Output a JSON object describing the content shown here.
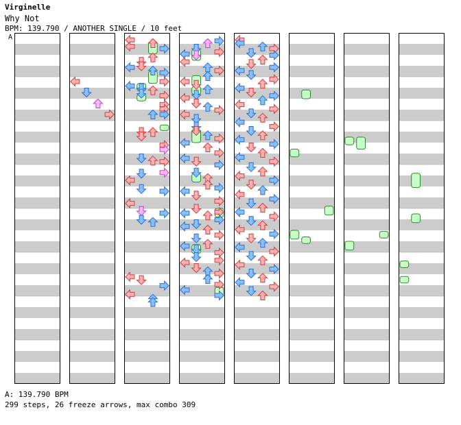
{
  "song": {
    "artist": "Virginelle",
    "title": "Why Not",
    "info": "BPM: 139.790 / ANOTHER SINGLE / 10 feet"
  },
  "marker": "A",
  "footer": {
    "bpm_line": "A: 139.790 BPM",
    "stats_line": "299 steps, 26 freeze arrows, max combo 309"
  },
  "colors": {
    "stripe": "#cccccc",
    "border": "#000000",
    "arrow_red": "#ffb0b0",
    "arrow_red_stroke": "#d23c3c",
    "arrow_blue": "#88c0ff",
    "arrow_blue_stroke": "#2a6fd0",
    "arrow_pink": "#ffb8ff",
    "freeze_fill": "#c8ffc8",
    "freeze_stroke": "#2a8a2a"
  },
  "chart_data": {
    "type": "step-chart",
    "columns": 8,
    "measures_per_column": 8,
    "lanes": [
      "left",
      "down",
      "up",
      "right"
    ],
    "notes": [
      [
        1,
        0,
        4,
        0
      ],
      [
        1,
        1,
        5,
        1
      ],
      [
        1,
        2,
        6,
        2
      ],
      [
        1,
        3,
        7,
        3
      ],
      [
        2,
        0,
        0.2,
        0
      ],
      [
        2,
        0,
        0.8,
        0
      ],
      [
        2,
        2,
        0.5,
        0
      ],
      [
        2,
        3,
        1.0,
        1
      ],
      [
        2,
        2,
        1.8,
        0
      ],
      [
        2,
        0,
        2.7,
        1
      ],
      [
        2,
        1,
        2.2,
        0
      ],
      [
        2,
        1,
        2.6,
        0
      ],
      [
        2,
        2,
        3.0,
        1
      ],
      [
        2,
        3,
        3.2,
        1
      ],
      [
        2,
        3,
        4.0,
        0
      ],
      [
        2,
        0,
        4.4,
        1
      ],
      [
        2,
        1,
        4.6,
        1
      ],
      [
        2,
        2,
        4.8,
        0
      ],
      [
        2,
        1,
        5.1,
        1
      ],
      [
        2,
        3,
        5.3,
        0
      ],
      [
        2,
        3,
        6.1,
        0
      ],
      [
        2,
        3,
        6.5,
        0
      ],
      [
        2,
        2,
        7.0,
        1
      ],
      [
        2,
        3,
        7.0,
        1
      ],
      [
        2,
        1,
        8.6,
        0
      ],
      [
        2,
        2,
        8.6,
        0
      ],
      [
        2,
        1,
        9.0,
        0
      ],
      [
        2,
        3,
        9.8,
        0
      ],
      [
        2,
        3,
        10.2,
        2
      ],
      [
        2,
        1,
        11.0,
        1
      ],
      [
        2,
        2,
        11.2,
        0
      ],
      [
        2,
        3,
        11.3,
        0
      ],
      [
        2,
        3,
        12.3,
        2
      ],
      [
        2,
        1,
        12.4,
        1
      ],
      [
        2,
        0,
        13.0,
        0
      ],
      [
        2,
        1,
        13.8,
        1
      ],
      [
        2,
        3,
        14.0,
        1
      ],
      [
        2,
        0,
        15.1,
        0
      ],
      [
        2,
        1,
        15.8,
        2
      ],
      [
        2,
        3,
        16.0,
        1
      ],
      [
        2,
        1,
        16.6,
        1
      ],
      [
        2,
        2,
        16.8,
        1
      ],
      [
        2,
        0,
        21.8,
        0
      ],
      [
        2,
        1,
        22.1,
        0
      ],
      [
        2,
        3,
        22.6,
        1
      ],
      [
        2,
        0,
        23.4,
        0
      ],
      [
        2,
        2,
        23.8,
        1
      ],
      [
        2,
        2,
        24.1,
        1
      ],
      [
        3,
        2,
        0.5,
        2
      ],
      [
        3,
        3,
        0.3,
        1
      ],
      [
        3,
        1,
        1.0,
        1
      ],
      [
        3,
        3,
        1.3,
        0
      ],
      [
        3,
        0,
        1.5,
        1
      ],
      [
        3,
        1,
        1.6,
        2
      ],
      [
        3,
        0,
        2.2,
        0
      ],
      [
        3,
        2,
        2.7,
        1
      ],
      [
        3,
        3,
        3.0,
        0
      ],
      [
        3,
        2,
        3.5,
        1
      ],
      [
        3,
        0,
        4.0,
        0
      ],
      [
        3,
        1,
        4.3,
        0
      ],
      [
        3,
        2,
        4.7,
        1
      ],
      [
        3,
        1,
        5.2,
        1
      ],
      [
        3,
        0,
        5.5,
        0
      ],
      [
        3,
        1,
        6.0,
        0
      ],
      [
        3,
        2,
        6.3,
        1
      ],
      [
        3,
        3,
        6.6,
        0
      ],
      [
        3,
        0,
        7.0,
        0
      ],
      [
        3,
        1,
        7.4,
        1
      ],
      [
        3,
        1,
        8.1,
        1
      ],
      [
        3,
        1,
        8.5,
        0
      ],
      [
        3,
        2,
        8.9,
        1
      ],
      [
        3,
        3,
        9.2,
        0
      ],
      [
        3,
        0,
        9.6,
        1
      ],
      [
        3,
        2,
        10.0,
        0
      ],
      [
        3,
        3,
        10.5,
        0
      ],
      [
        3,
        0,
        11.0,
        1
      ],
      [
        3,
        1,
        11.3,
        0
      ],
      [
        3,
        3,
        11.6,
        1
      ],
      [
        3,
        1,
        12.3,
        1
      ],
      [
        3,
        2,
        12.8,
        0
      ],
      [
        3,
        2,
        13.4,
        0
      ],
      [
        3,
        3,
        13.7,
        1
      ],
      [
        3,
        0,
        14.0,
        1
      ],
      [
        3,
        1,
        14.4,
        0
      ],
      [
        3,
        3,
        14.9,
        0
      ],
      [
        3,
        1,
        15.6,
        0
      ],
      [
        3,
        3,
        15.9,
        0
      ],
      [
        3,
        0,
        16.0,
        1
      ],
      [
        3,
        2,
        16.2,
        0
      ],
      [
        3,
        3,
        16.6,
        1
      ],
      [
        3,
        1,
        17.0,
        1
      ],
      [
        3,
        0,
        17.2,
        1
      ],
      [
        3,
        2,
        17.5,
        0
      ],
      [
        3,
        3,
        18.0,
        0
      ],
      [
        3,
        1,
        18.3,
        1
      ],
      [
        3,
        2,
        18.8,
        0
      ],
      [
        3,
        0,
        19.0,
        1
      ],
      [
        3,
        1,
        19.3,
        1
      ],
      [
        3,
        3,
        19.6,
        0
      ],
      [
        3,
        1,
        20.0,
        1
      ],
      [
        3,
        3,
        20.3,
        0
      ],
      [
        3,
        0,
        20.5,
        0
      ],
      [
        3,
        1,
        21.0,
        0
      ],
      [
        3,
        2,
        21.3,
        1
      ],
      [
        3,
        3,
        21.5,
        0
      ],
      [
        3,
        2,
        22.0,
        1
      ],
      [
        3,
        3,
        22.5,
        0
      ],
      [
        3,
        0,
        23.0,
        1
      ],
      [
        3,
        3,
        23.5,
        1
      ],
      [
        4,
        0,
        0.2,
        0
      ],
      [
        4,
        0,
        0.5,
        1
      ],
      [
        4,
        2,
        0.8,
        1
      ],
      [
        4,
        3,
        1.0,
        0
      ],
      [
        4,
        1,
        1.4,
        1
      ],
      [
        4,
        3,
        1.6,
        1
      ],
      [
        4,
        2,
        2.0,
        0
      ],
      [
        4,
        1,
        2.4,
        0
      ],
      [
        4,
        3,
        2.7,
        1
      ],
      [
        4,
        0,
        3.0,
        1
      ],
      [
        4,
        1,
        3.4,
        1
      ],
      [
        4,
        3,
        3.8,
        0
      ],
      [
        4,
        2,
        4.2,
        0
      ],
      [
        4,
        0,
        4.6,
        1
      ],
      [
        4,
        1,
        5.0,
        0
      ],
      [
        4,
        3,
        5.3,
        1
      ],
      [
        4,
        2,
        5.7,
        1
      ],
      [
        4,
        0,
        6.1,
        0
      ],
      [
        4,
        3,
        6.5,
        0
      ],
      [
        4,
        1,
        6.9,
        1
      ],
      [
        4,
        2,
        7.3,
        0
      ],
      [
        4,
        0,
        7.7,
        1
      ],
      [
        4,
        3,
        8.1,
        0
      ],
      [
        4,
        1,
        8.5,
        1
      ],
      [
        4,
        2,
        8.9,
        0
      ],
      [
        4,
        0,
        9.3,
        1
      ],
      [
        4,
        3,
        9.7,
        1
      ],
      [
        4,
        1,
        10.0,
        0
      ],
      [
        4,
        2,
        10.5,
        0
      ],
      [
        4,
        0,
        10.9,
        1
      ],
      [
        4,
        3,
        11.3,
        0
      ],
      [
        4,
        1,
        11.8,
        1
      ],
      [
        4,
        2,
        12.2,
        0
      ],
      [
        4,
        0,
        12.6,
        0
      ],
      [
        4,
        3,
        13.0,
        1
      ],
      [
        4,
        1,
        13.4,
        0
      ],
      [
        4,
        2,
        13.9,
        1
      ],
      [
        4,
        0,
        14.3,
        0
      ],
      [
        4,
        3,
        14.7,
        1
      ],
      [
        4,
        1,
        15.1,
        1
      ],
      [
        4,
        2,
        15.5,
        0
      ],
      [
        4,
        0,
        15.9,
        1
      ],
      [
        4,
        3,
        16.3,
        0
      ],
      [
        4,
        1,
        16.7,
        1
      ],
      [
        4,
        2,
        17.1,
        0
      ],
      [
        4,
        0,
        17.5,
        0
      ],
      [
        4,
        3,
        17.9,
        1
      ],
      [
        4,
        1,
        18.3,
        0
      ],
      [
        4,
        2,
        18.7,
        1
      ],
      [
        4,
        0,
        19.1,
        1
      ],
      [
        4,
        3,
        19.5,
        0
      ],
      [
        4,
        1,
        19.9,
        1
      ],
      [
        4,
        2,
        20.3,
        0
      ],
      [
        4,
        0,
        20.7,
        0
      ],
      [
        4,
        3,
        21.1,
        1
      ],
      [
        4,
        1,
        21.5,
        1
      ],
      [
        4,
        2,
        21.9,
        0
      ],
      [
        4,
        0,
        22.3,
        1
      ],
      [
        4,
        3,
        22.7,
        0
      ],
      [
        4,
        1,
        23.1,
        1
      ],
      [
        4,
        2,
        23.5,
        0
      ]
    ],
    "freezes": [
      [
        2,
        2,
        0.8,
        1.9
      ],
      [
        2,
        2,
        3.5,
        4.6
      ],
      [
        2,
        1,
        4.6,
        5.3
      ],
      [
        2,
        1,
        5.6,
        6.2
      ],
      [
        2,
        3,
        8.4,
        8.9
      ],
      [
        3,
        1,
        1.5,
        2.5
      ],
      [
        3,
        1,
        3.9,
        4.8
      ],
      [
        3,
        1,
        4.9,
        5.6
      ],
      [
        3,
        1,
        8.8,
        10.0
      ],
      [
        3,
        1,
        12.8,
        13.6
      ],
      [
        3,
        3,
        16.0,
        16.8
      ],
      [
        3,
        1,
        19.3,
        20.1
      ],
      [
        3,
        3,
        23.2,
        23.9
      ],
      [
        5,
        1,
        5.2,
        6.0
      ],
      [
        5,
        0,
        10.6,
        11.3
      ],
      [
        5,
        3,
        15.8,
        16.6
      ],
      [
        5,
        0,
        18.0,
        18.8
      ],
      [
        5,
        1,
        18.6,
        19.2
      ],
      [
        6,
        0,
        9.5,
        10.2
      ],
      [
        6,
        1,
        9.5,
        10.6
      ],
      [
        6,
        0,
        19.0,
        19.8
      ],
      [
        6,
        3,
        18.1,
        18.7
      ],
      [
        7,
        1,
        12.8,
        14.1
      ],
      [
        7,
        1,
        16.5,
        17.3
      ],
      [
        7,
        0,
        20.8,
        21.4
      ],
      [
        7,
        0,
        22.2,
        22.8
      ]
    ]
  }
}
